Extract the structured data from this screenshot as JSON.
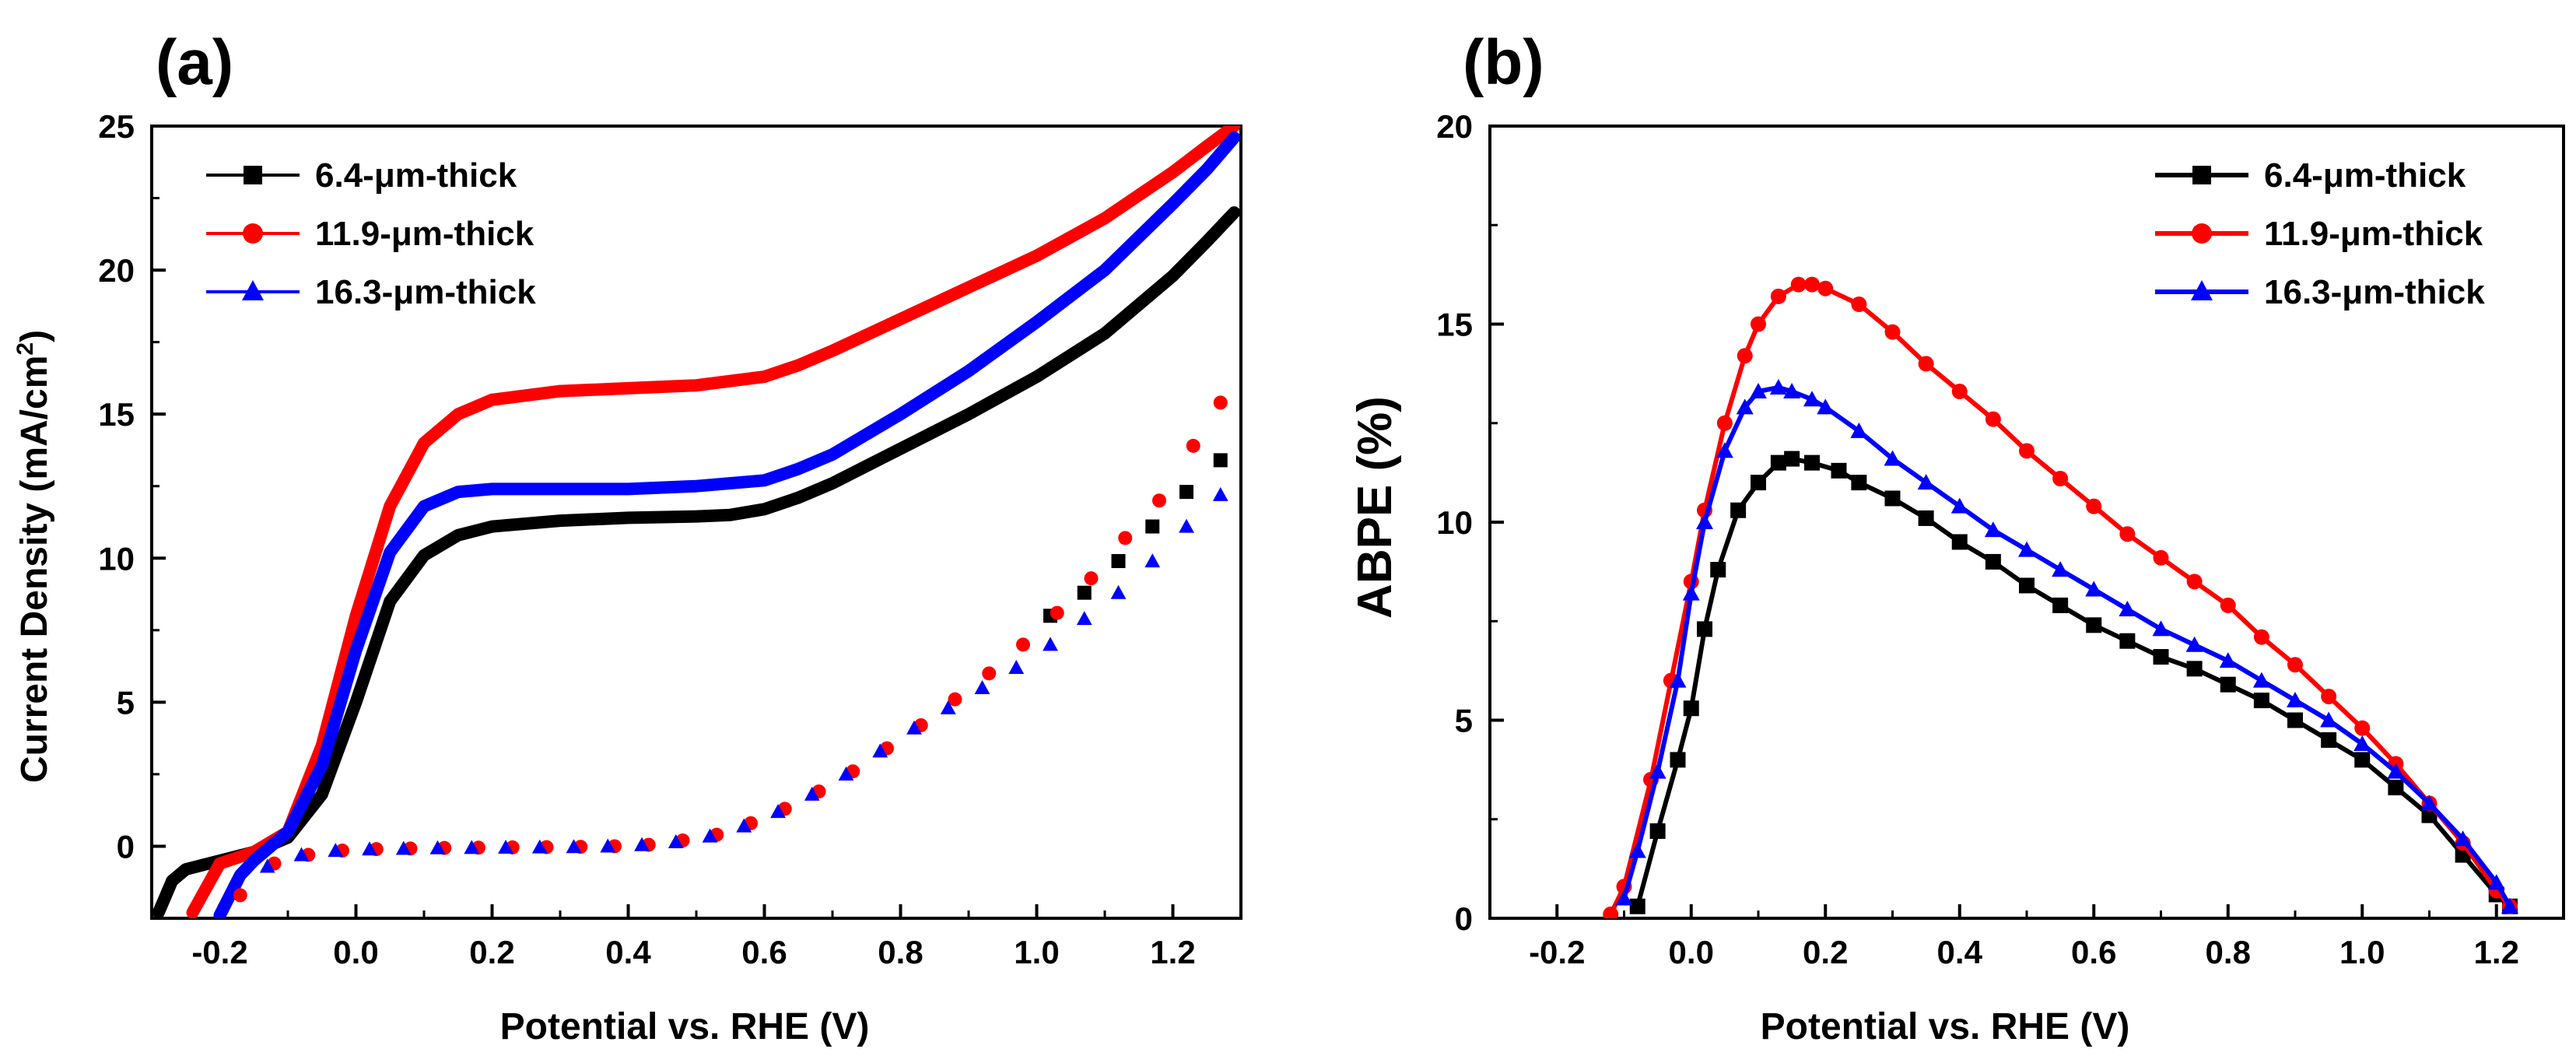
{
  "panels": [
    {
      "label": "(a)",
      "xlabel": "Potential vs. RHE (V)",
      "ylabel": "Current Density (mA/cm",
      "ylabel_sup": "2",
      "ylabel_end": ")",
      "legend": [
        "6.4-μm-thick",
        "11.9-μm-thick",
        "16.3-μm-thick"
      ],
      "xticks": [
        "-0.2",
        "0.0",
        "0.2",
        "0.4",
        "0.6",
        "0.8",
        "1.0",
        "1.2"
      ],
      "yticks": [
        "0",
        "5",
        "10",
        "15",
        "20",
        "25"
      ]
    },
    {
      "label": "(b)",
      "xlabel": "Potential vs. RHE (V)",
      "ylabel": "ABPE (%)",
      "legend": [
        "6.4-μm-thick",
        "11.9-μm-thick",
        "16.3-μm-thick"
      ],
      "xticks": [
        "-0.2",
        "0.0",
        "0.2",
        "0.4",
        "0.6",
        "0.8",
        "1.0",
        "1.2"
      ],
      "yticks": [
        "0",
        "5",
        "10",
        "15",
        "20"
      ]
    }
  ],
  "colors": {
    "black": "#000000",
    "red": "#ff0000",
    "blue": "#0000ff"
  },
  "chart_data": [
    {
      "type": "line",
      "xlabel": "Potential vs. RHE (V)",
      "ylabel": "Current Density (mA/cm2)",
      "xlim": [
        -0.3,
        1.3
      ],
      "ylim": [
        -2.5,
        25
      ],
      "legend_position": "top-left",
      "series": [
        {
          "name": "6.4-μm-thick",
          "color": "#000000",
          "marker": "square",
          "kind": "light",
          "x": [
            -0.29,
            -0.27,
            -0.25,
            -0.2,
            -0.15,
            -0.1,
            -0.05,
            0.0,
            0.05,
            0.1,
            0.15,
            0.2,
            0.3,
            0.4,
            0.5,
            0.55,
            0.6,
            0.65,
            0.7,
            0.8,
            0.9,
            1.0,
            1.1,
            1.2,
            1.25,
            1.29
          ],
          "y": [
            -2.3,
            -1.2,
            -0.8,
            -0.5,
            -0.2,
            0.3,
            1.8,
            5.0,
            8.5,
            10.1,
            10.8,
            11.1,
            11.3,
            11.4,
            11.45,
            11.5,
            11.7,
            12.1,
            12.6,
            13.8,
            15.0,
            16.3,
            17.8,
            19.8,
            21.0,
            22.0
          ]
        },
        {
          "name": "11.9-μm-thick",
          "color": "#ff0000",
          "marker": "circle",
          "kind": "light",
          "x": [
            -0.24,
            -0.2,
            -0.15,
            -0.1,
            -0.05,
            0.0,
            0.05,
            0.1,
            0.15,
            0.2,
            0.3,
            0.4,
            0.5,
            0.6,
            0.65,
            0.7,
            0.8,
            0.9,
            1.0,
            1.1,
            1.2,
            1.25,
            1.29
          ],
          "y": [
            -2.3,
            -0.6,
            -0.2,
            0.5,
            3.5,
            8.0,
            11.8,
            14.0,
            15.0,
            15.5,
            15.8,
            15.9,
            16.0,
            16.3,
            16.7,
            17.2,
            18.3,
            19.4,
            20.5,
            21.8,
            23.4,
            24.3,
            25.0
          ]
        },
        {
          "name": "16.3-μm-thick",
          "color": "#0000ff",
          "marker": "triangle",
          "kind": "light",
          "x": [
            -0.2,
            -0.17,
            -0.15,
            -0.1,
            -0.05,
            0.0,
            0.05,
            0.1,
            0.15,
            0.2,
            0.3,
            0.4,
            0.5,
            0.6,
            0.65,
            0.7,
            0.8,
            0.9,
            1.0,
            1.1,
            1.2,
            1.25,
            1.29
          ],
          "y": [
            -2.4,
            -1.0,
            -0.5,
            0.5,
            2.8,
            6.8,
            10.2,
            11.8,
            12.3,
            12.4,
            12.4,
            12.4,
            12.5,
            12.7,
            13.1,
            13.6,
            15.0,
            16.5,
            18.2,
            20.0,
            22.3,
            23.5,
            24.6
          ]
        },
        {
          "name": "",
          "color": "#000000",
          "marker": "square",
          "kind": "dark",
          "x": [
            1.02,
            1.07,
            1.12,
            1.17,
            1.22,
            1.27
          ],
          "y": [
            8.0,
            8.8,
            9.9,
            11.1,
            12.3,
            13.4
          ]
        },
        {
          "name": "",
          "color": "#ff0000",
          "marker": "circle",
          "kind": "dark",
          "x": [
            -0.17,
            -0.12,
            -0.07,
            -0.02,
            0.03,
            0.08,
            0.13,
            0.18,
            0.23,
            0.28,
            0.33,
            0.38,
            0.43,
            0.48,
            0.53,
            0.58,
            0.63,
            0.68,
            0.73,
            0.78,
            0.83,
            0.88,
            0.93,
            0.98,
            1.03,
            1.08,
            1.13,
            1.18,
            1.23,
            1.27
          ],
          "y": [
            -1.7,
            -0.6,
            -0.3,
            -0.15,
            -0.1,
            -0.08,
            -0.06,
            -0.05,
            -0.04,
            -0.03,
            -0.02,
            0.0,
            0.05,
            0.2,
            0.4,
            0.8,
            1.3,
            1.9,
            2.6,
            3.4,
            4.2,
            5.1,
            6.0,
            7.0,
            8.1,
            9.3,
            10.7,
            12.0,
            13.9,
            15.4
          ]
        },
        {
          "name": "",
          "color": "#0000ff",
          "marker": "triangle",
          "kind": "dark",
          "x": [
            -0.13,
            -0.08,
            -0.03,
            0.02,
            0.07,
            0.12,
            0.17,
            0.22,
            0.27,
            0.32,
            0.37,
            0.42,
            0.47,
            0.52,
            0.57,
            0.62,
            0.67,
            0.72,
            0.77,
            0.82,
            0.87,
            0.92,
            0.97,
            1.02,
            1.07,
            1.12,
            1.17,
            1.22,
            1.27
          ],
          "y": [
            -0.7,
            -0.3,
            -0.15,
            -0.1,
            -0.08,
            -0.06,
            -0.05,
            -0.04,
            -0.03,
            -0.02,
            0.0,
            0.05,
            0.15,
            0.35,
            0.7,
            1.2,
            1.8,
            2.5,
            3.3,
            4.1,
            4.8,
            5.5,
            6.2,
            7.0,
            7.9,
            8.8,
            9.9,
            11.1,
            12.2
          ]
        }
      ]
    },
    {
      "type": "line",
      "xlabel": "Potential vs. RHE (V)",
      "ylabel": "ABPE (%)",
      "xlim": [
        -0.3,
        1.3
      ],
      "ylim": [
        0,
        20
      ],
      "legend_position": "top-right",
      "series": [
        {
          "name": "6.4-μm-thick",
          "color": "#000000",
          "marker": "square",
          "x": [
            -0.08,
            -0.05,
            -0.02,
            0.0,
            0.02,
            0.04,
            0.07,
            0.1,
            0.13,
            0.15,
            0.18,
            0.22,
            0.25,
            0.3,
            0.35,
            0.4,
            0.45,
            0.5,
            0.55,
            0.6,
            0.65,
            0.7,
            0.75,
            0.8,
            0.85,
            0.9,
            0.95,
            1.0,
            1.05,
            1.1,
            1.15,
            1.2,
            1.22
          ],
          "y": [
            0.3,
            2.2,
            4.0,
            5.3,
            7.3,
            8.8,
            10.3,
            11.0,
            11.5,
            11.6,
            11.5,
            11.3,
            11.0,
            10.6,
            10.1,
            9.5,
            9.0,
            8.4,
            7.9,
            7.4,
            7.0,
            6.6,
            6.3,
            5.9,
            5.5,
            5.0,
            4.5,
            4.0,
            3.3,
            2.6,
            1.6,
            0.6,
            0.3
          ]
        },
        {
          "name": "11.9-μm-thick",
          "color": "#ff0000",
          "marker": "circle",
          "x": [
            -0.12,
            -0.1,
            -0.06,
            -0.03,
            0.0,
            0.02,
            0.05,
            0.08,
            0.1,
            0.13,
            0.16,
            0.18,
            0.2,
            0.25,
            0.3,
            0.35,
            0.4,
            0.45,
            0.5,
            0.55,
            0.6,
            0.65,
            0.7,
            0.75,
            0.8,
            0.85,
            0.9,
            0.95,
            1.0,
            1.05,
            1.1,
            1.15,
            1.2,
            1.22
          ],
          "y": [
            0.1,
            0.8,
            3.5,
            6.0,
            8.5,
            10.3,
            12.5,
            14.2,
            15.0,
            15.7,
            16.0,
            16.0,
            15.9,
            15.5,
            14.8,
            14.0,
            13.3,
            12.6,
            11.8,
            11.1,
            10.4,
            9.7,
            9.1,
            8.5,
            7.9,
            7.1,
            6.4,
            5.6,
            4.8,
            3.9,
            2.9,
            1.9,
            0.7,
            0.3
          ]
        },
        {
          "name": "16.3-μm-thick",
          "color": "#0000ff",
          "marker": "triangle",
          "x": [
            -0.1,
            -0.08,
            -0.05,
            -0.02,
            0.0,
            0.02,
            0.05,
            0.08,
            0.1,
            0.13,
            0.15,
            0.18,
            0.2,
            0.25,
            0.3,
            0.35,
            0.4,
            0.45,
            0.5,
            0.55,
            0.6,
            0.65,
            0.7,
            0.75,
            0.8,
            0.85,
            0.9,
            0.95,
            1.0,
            1.05,
            1.1,
            1.15,
            1.2,
            1.22
          ],
          "y": [
            0.5,
            1.7,
            3.7,
            6.0,
            8.2,
            10.0,
            11.8,
            12.9,
            13.3,
            13.4,
            13.3,
            13.1,
            12.9,
            12.3,
            11.6,
            11.0,
            10.4,
            9.8,
            9.3,
            8.8,
            8.3,
            7.8,
            7.3,
            6.9,
            6.5,
            6.0,
            5.5,
            5.0,
            4.4,
            3.7,
            2.9,
            2.0,
            0.9,
            0.3
          ]
        }
      ]
    }
  ]
}
